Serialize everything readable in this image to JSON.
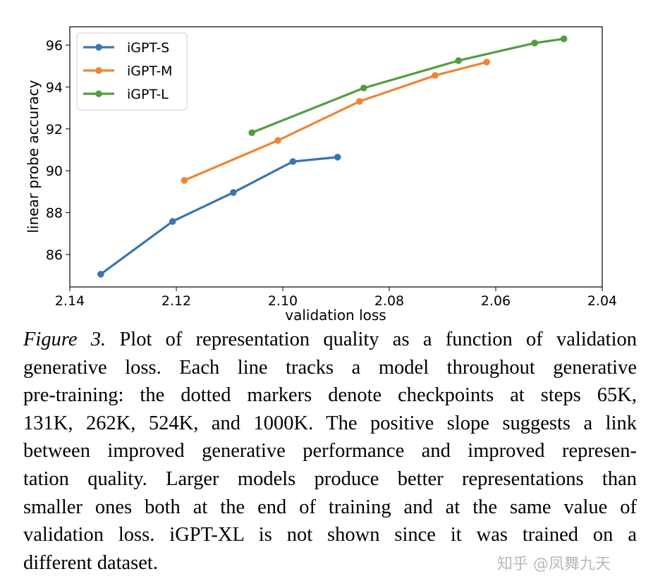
{
  "chart_data": {
    "type": "line",
    "xlabel": "validation loss",
    "ylabel": "linear probe accuracy",
    "xlim": [
      2.14,
      2.04
    ],
    "ylim": [
      84.5,
      96.9
    ],
    "x_inverted": true,
    "xticks": [
      2.14,
      2.12,
      2.1,
      2.08,
      2.06,
      2.04
    ],
    "xtick_labels": [
      "2.14",
      "2.12",
      "2.10",
      "2.08",
      "2.06",
      "2.04"
    ],
    "yticks": [
      86,
      88,
      90,
      92,
      94,
      96
    ],
    "ytick_labels": [
      "86",
      "88",
      "90",
      "92",
      "94",
      "96"
    ],
    "grid": false,
    "legend_position": "top-left",
    "series": [
      {
        "name": "iGPT-S",
        "color": "#3a75ae",
        "x": [
          2.1342,
          2.1207,
          2.1093,
          2.0981,
          2.0897
        ],
        "y": [
          85.06,
          87.58,
          88.96,
          90.44,
          90.65
        ]
      },
      {
        "name": "iGPT-M",
        "color": "#ef8532",
        "x": [
          2.1185,
          2.1009,
          2.0856,
          2.0714,
          2.0617
        ],
        "y": [
          89.54,
          91.45,
          93.31,
          94.55,
          95.19
        ]
      },
      {
        "name": "iGPT-L",
        "color": "#519e3e",
        "x": [
          2.1058,
          2.0848,
          2.067,
          2.0527,
          2.0472
        ],
        "y": [
          91.82,
          93.95,
          95.26,
          96.1,
          96.3
        ]
      }
    ]
  },
  "caption": {
    "label": "Figure 3.",
    "lines": [
      " Plot of representation quality as a function of validation",
      "generative loss. Each line tracks a model throughout generative",
      "pre-training: the dotted markers denote checkpoints at steps 65K,",
      "131K, 262K, 524K, and 1000K. The positive slope suggests a link",
      "between improved generative performance and improved represen-",
      "tation quality. Larger models produce better representations than",
      "smaller ones both at the end of training and at the same value of",
      "validation loss. iGPT-XL is not shown since it was trained on a",
      "different dataset."
    ]
  },
  "watermark": "知乎 @凤舞九天"
}
